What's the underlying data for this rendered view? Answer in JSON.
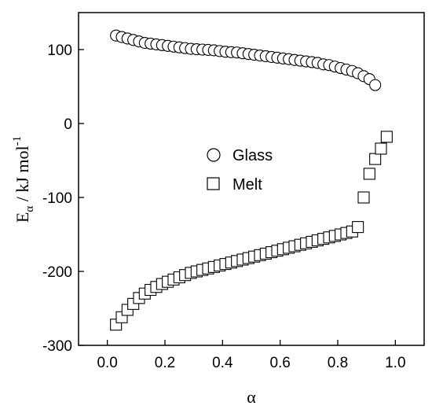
{
  "chart_data": {
    "type": "scatter",
    "xlabel": "α",
    "ylabel_main": "E",
    "ylabel_sub": "α",
    "ylabel_rest": " / kJ mol",
    "ylabel_sup": "-1",
    "xlim": [
      -0.1,
      1.1
    ],
    "ylim": [
      -300,
      150
    ],
    "xticks": [
      0.0,
      0.2,
      0.4,
      0.6,
      0.8,
      1.0
    ],
    "xtick_labels": [
      "0.0",
      "0.2",
      "0.4",
      "0.6",
      "0.8",
      "1.0"
    ],
    "yticks": [
      100,
      0,
      -100,
      -200,
      -300
    ],
    "ytick_labels": [
      "100",
      "0",
      "-100",
      "-200",
      "-300"
    ],
    "grid": false,
    "legend_position": "center",
    "series": [
      {
        "name": "Glass",
        "marker": "circle",
        "x": [
          0.03,
          0.05,
          0.07,
          0.09,
          0.11,
          0.13,
          0.15,
          0.17,
          0.19,
          0.21,
          0.23,
          0.25,
          0.27,
          0.29,
          0.31,
          0.33,
          0.35,
          0.37,
          0.39,
          0.41,
          0.43,
          0.45,
          0.47,
          0.49,
          0.51,
          0.53,
          0.55,
          0.57,
          0.59,
          0.61,
          0.63,
          0.65,
          0.67,
          0.69,
          0.71,
          0.73,
          0.75,
          0.77,
          0.79,
          0.81,
          0.83,
          0.85,
          0.87,
          0.89,
          0.91,
          0.93
        ],
        "y": [
          119,
          117,
          115,
          113,
          111,
          109,
          108,
          107,
          106,
          105,
          104,
          103,
          102,
          101,
          100.5,
          100,
          99.5,
          99,
          98,
          97,
          96.5,
          96,
          95,
          94,
          93,
          92,
          91,
          90,
          89,
          88,
          87,
          86,
          85,
          84,
          83,
          82,
          80,
          79,
          77,
          75,
          73,
          71,
          68,
          64,
          60,
          52
        ]
      },
      {
        "name": "Melt",
        "marker": "square",
        "x": [
          0.03,
          0.05,
          0.07,
          0.09,
          0.11,
          0.13,
          0.15,
          0.17,
          0.19,
          0.21,
          0.23,
          0.25,
          0.27,
          0.29,
          0.31,
          0.33,
          0.35,
          0.37,
          0.39,
          0.41,
          0.43,
          0.45,
          0.47,
          0.49,
          0.51,
          0.53,
          0.55,
          0.57,
          0.59,
          0.61,
          0.63,
          0.65,
          0.67,
          0.69,
          0.71,
          0.73,
          0.75,
          0.77,
          0.79,
          0.81,
          0.83,
          0.85,
          0.87,
          0.89,
          0.91,
          0.93,
          0.95,
          0.97
        ],
        "y": [
          -272,
          -262,
          -252,
          -244,
          -236,
          -230,
          -225,
          -221,
          -217,
          -214,
          -211,
          -208,
          -205,
          -202,
          -200,
          -198,
          -196,
          -194,
          -192,
          -190,
          -188,
          -186,
          -184,
          -182,
          -180,
          -178,
          -176,
          -174,
          -172,
          -170,
          -168,
          -166,
          -164,
          -162,
          -160,
          -158,
          -156,
          -154,
          -152,
          -150,
          -148,
          -146,
          -140,
          -100,
          -68,
          -48,
          -34,
          -18
        ]
      }
    ]
  }
}
